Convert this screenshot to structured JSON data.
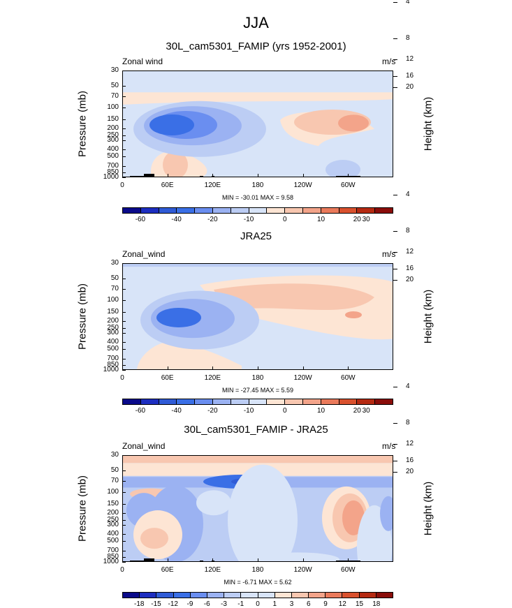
{
  "main_title": "JJA",
  "colors": {
    "main": [
      "#0a0a8a",
      "#1d2ec0",
      "#2f5bd6",
      "#3a6fe6",
      "#6a8ef0",
      "#9bb2f2",
      "#bccdf4",
      "#d8e4f8",
      "#fde5d4",
      "#f8c7b0",
      "#f3a48a",
      "#ea7a5b",
      "#d9512e",
      "#b52a12",
      "#8a0d0a"
    ],
    "diff": [
      "#0a0a8a",
      "#1d2ec0",
      "#2f5bd6",
      "#3a6fe6",
      "#6a8ef0",
      "#9bb2f2",
      "#bccdf4",
      "#d8e4f8",
      "#fde5d4",
      "#f8c7b0",
      "#f3a48a",
      "#ea7a5b",
      "#d9512e",
      "#b52a12",
      "#8a0d0a"
    ]
  },
  "panels": [
    {
      "title": "30L_cam5301_FAMIP (yrs 1952-2001)",
      "left_label": "Zonal wind",
      "right_label": "m/s",
      "ylabel": "Pressure (mb)",
      "hlabel": "Height (km)",
      "minmax": "MIN = -30.01  MAX =  9.58",
      "colorbar_labels": [
        "-60",
        "-40",
        "-20",
        "-10",
        "0",
        "10",
        "20",
        "30"
      ]
    },
    {
      "title": "JRA25",
      "left_label": "Zonal_wind",
      "right_label": "m/s",
      "ylabel": "Pressure (mb)",
      "hlabel": "Height (km)",
      "minmax": "MIN = -27.45  MAX =  5.59",
      "colorbar_labels": [
        "-60",
        "-40",
        "-20",
        "-10",
        "0",
        "10",
        "20",
        "30"
      ]
    },
    {
      "title": "30L_cam5301_FAMIP - JRA25",
      "left_label": "Zonal_wind",
      "right_label": "m/s",
      "ylabel": "Pressure (mb)",
      "hlabel": "Height (km)",
      "minmax": "MIN = -6.71  MAX =  5.62",
      "colorbar_labels": [
        "-18",
        "-15",
        "-12",
        "-9",
        "-6",
        "-3",
        "-1",
        "0",
        "1",
        "3",
        "6",
        "9",
        "12",
        "15",
        "18"
      ]
    }
  ],
  "chart_data": [
    {
      "type": "heatmap",
      "title": "30L_cam5301_FAMIP (yrs 1952-2001)",
      "variable": "Zonal wind",
      "units": "m/s",
      "xlabel": "",
      "ylabel": "Pressure (mb)",
      "y2label": "Height (km)",
      "x_ticks": [
        "0",
        "60E",
        "120E",
        "180",
        "120W",
        "60W"
      ],
      "y_ticks": [
        "30",
        "50",
        "70",
        "100",
        "150",
        "200",
        "250",
        "300",
        "400",
        "500",
        "700",
        "850",
        "1000"
      ],
      "y2_ticks": [
        "20",
        "16",
        "12",
        "8",
        "4"
      ],
      "min": -30.01,
      "max": 9.58,
      "contour_levels": [
        -60,
        -50,
        -40,
        -30,
        -20,
        -15,
        -10,
        -5,
        0,
        5,
        10,
        15,
        20,
        25,
        30,
        35
      ]
    },
    {
      "type": "heatmap",
      "title": "JRA25",
      "variable": "Zonal_wind",
      "units": "m/s",
      "ylabel": "Pressure (mb)",
      "y2label": "Height (km)",
      "x_ticks": [
        "0",
        "60E",
        "120E",
        "180",
        "120W",
        "60W"
      ],
      "y_ticks": [
        "30",
        "50",
        "70",
        "100",
        "150",
        "200",
        "250",
        "300",
        "400",
        "500",
        "700",
        "850",
        "1000"
      ],
      "y2_ticks": [
        "20",
        "16",
        "12",
        "8",
        "4"
      ],
      "min": -27.45,
      "max": 5.59
    },
    {
      "type": "heatmap",
      "title": "30L_cam5301_FAMIP - JRA25",
      "variable": "Zonal_wind",
      "units": "m/s",
      "ylabel": "Pressure (mb)",
      "y2label": "Height (km)",
      "x_ticks": [
        "0",
        "60E",
        "120E",
        "180",
        "120W",
        "60W"
      ],
      "y_ticks": [
        "30",
        "50",
        "70",
        "100",
        "150",
        "200",
        "250",
        "300",
        "400",
        "500",
        "700",
        "850",
        "1000"
      ],
      "y2_ticks": [
        "20",
        "16",
        "12",
        "8",
        "4"
      ],
      "min": -6.71,
      "max": 5.62,
      "contour_levels": [
        -18,
        -15,
        -12,
        -9,
        -6,
        -3,
        -1,
        0,
        1,
        3,
        6,
        9,
        12,
        15,
        18
      ]
    }
  ]
}
